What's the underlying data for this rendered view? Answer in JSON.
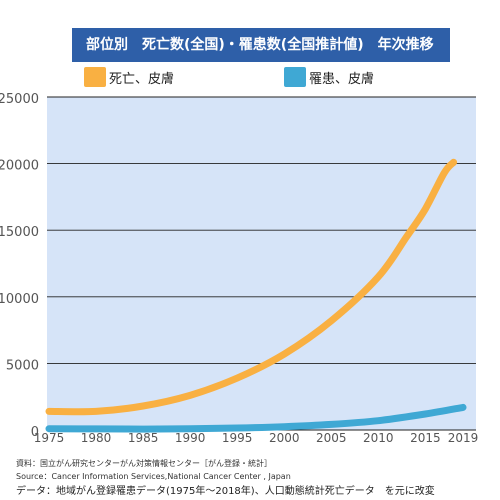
{
  "title": "部位別　死亡数(全国)・罹患数(全国推計値)　年次推移",
  "legend": [
    {
      "label": "死亡、皮膚",
      "color": "#f9b042"
    },
    {
      "label": "罹患、皮膚",
      "color": "#3fa8d4"
    }
  ],
  "colors": {
    "plot_bg": "#d6e4f8",
    "grid": "#222222"
  },
  "chart_data": {
    "type": "line",
    "ylim": [
      0,
      25000
    ],
    "xlim": [
      1974,
      2020
    ],
    "yticks": [
      0,
      5000,
      10000,
      15000,
      20000,
      25000
    ],
    "xticks": [
      1975,
      1980,
      1985,
      1990,
      1995,
      2000,
      2005,
      2010,
      2015,
      2019
    ],
    "series": [
      {
        "name": "死亡、皮膚",
        "color": "#f9b042",
        "points": [
          [
            1975,
            1400
          ],
          [
            1980,
            1400
          ],
          [
            1985,
            1800
          ],
          [
            1990,
            2600
          ],
          [
            1995,
            3900
          ],
          [
            2000,
            5700
          ],
          [
            2005,
            8200
          ],
          [
            2010,
            11500
          ],
          [
            2013,
            14500
          ],
          [
            2015,
            16600
          ],
          [
            2017,
            19300
          ],
          [
            2018,
            20100
          ]
        ]
      },
      {
        "name": "罹患、皮膚",
        "color": "#3fa8d4",
        "points": [
          [
            1975,
            100
          ],
          [
            1980,
            80
          ],
          [
            1985,
            70
          ],
          [
            1990,
            100
          ],
          [
            1995,
            150
          ],
          [
            2000,
            250
          ],
          [
            2005,
            420
          ],
          [
            2010,
            700
          ],
          [
            2015,
            1200
          ],
          [
            2019,
            1700
          ]
        ]
      }
    ]
  },
  "footer": {
    "source_ja": "資料：国立がん研究センターがん対策情報センター［がん登録・統計］",
    "source_en": "Source：Cancer Information Services,National Cancer Center , Japan",
    "data_note": "データ：地域がん登録罹患データ(1975年～2018年)、人口動態統計死亡データ　を元に改変"
  }
}
